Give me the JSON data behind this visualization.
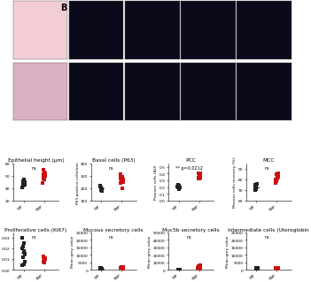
{
  "title_label": "B",
  "background_color": "#ffffff",
  "image_panel": {
    "he_color_top": "#f0c8d0",
    "he_color_bot": "#d8a8c0",
    "fluor_bg": "#080818"
  },
  "scatter_plots_row1": [
    {
      "title": "Epithelial height (μm)",
      "ylabel": "",
      "sig_text": "ns",
      "black_points": [
        42,
        45,
        47,
        43,
        44,
        46,
        41,
        43,
        45,
        44
      ],
      "red_points": [
        44,
        50,
        52,
        48,
        55,
        49,
        51,
        47,
        53,
        50
      ],
      "ylim": [
        30,
        60
      ],
      "yticks": [
        30,
        40,
        50,
        60
      ]
    },
    {
      "title": "Basal cells (P63)",
      "ylabel": "P63 positive cells/mm",
      "sig_text": "ns",
      "black_points": [
        180,
        220,
        200,
        190,
        205,
        195,
        215,
        185
      ],
      "red_points": [
        200,
        280,
        260,
        310,
        240,
        270,
        250,
        290,
        265,
        285
      ],
      "ylim": [
        100,
        400
      ],
      "yticks": [
        100,
        200,
        300,
        400
      ]
    },
    {
      "title": "PCC",
      "ylabel": "Pearson cells (AU)",
      "sig_text": "** p=0.0212",
      "black_points": [
        0.18,
        0.22,
        0.2,
        0.17,
        0.21,
        0.19,
        0.23,
        0.18
      ],
      "red_points": [
        0.32,
        0.38,
        0.35,
        0.4,
        0.34,
        0.37,
        0.36,
        0.39,
        0.33,
        0.41
      ],
      "ylim": [
        0.0,
        0.55
      ],
      "yticks": [
        0.0,
        0.1,
        0.2,
        0.3,
        0.4,
        0.5
      ]
    },
    {
      "title": "MCC",
      "ylabel": "Mucous cells recovery (%)",
      "sig_text": "ns",
      "black_points": [
        72,
        75,
        70,
        74,
        73,
        71,
        76,
        72
      ],
      "red_points": [
        78,
        82,
        80,
        84,
        79,
        83,
        81,
        85,
        77,
        86
      ],
      "ylim": [
        60,
        95
      ],
      "yticks": [
        60,
        70,
        80,
        90
      ]
    }
  ],
  "scatter_plots_row2": [
    {
      "title": "Proliferative cells (Ki67)",
      "ylabel": "",
      "sig_text": "ns",
      "black_points": [
        0.005,
        0.025,
        0.008,
        0.03,
        0.012,
        0.02,
        0.015,
        0.018,
        0.022,
        0.004
      ],
      "red_points": [
        0.008,
        0.012,
        0.01,
        0.009,
        0.011,
        0.007,
        0.013,
        0.009,
        0.01,
        0.008
      ],
      "ylim": [
        0,
        0.035
      ],
      "yticks": [
        0,
        0.01,
        0.02,
        0.03
      ]
    },
    {
      "title": "Mucous secretory cells",
      "ylabel": "Mean grey value",
      "sig_text": "ns",
      "black_points": [
        700,
        1200,
        900,
        800,
        1100,
        950,
        1050,
        850,
        750,
        1000
      ],
      "red_points": [
        1000,
        1800,
        1200,
        2000,
        1300,
        1600,
        1100,
        1400,
        1700,
        1250
      ],
      "ylim": [
        0,
        25000
      ],
      "yticks": [
        0,
        5000,
        10000,
        15000,
        20000,
        25000
      ]
    },
    {
      "title": "Muc5b secretory cells",
      "ylabel": "Mean grey value",
      "sig_text": "ns",
      "black_points": [
        200,
        500,
        350,
        280,
        420,
        310,
        380,
        250,
        450,
        300
      ],
      "red_points": [
        1500,
        5000,
        2000,
        6000,
        2500,
        4000,
        1800,
        3500,
        4500,
        2200
      ],
      "ylim": [
        0,
        50000
      ],
      "yticks": [
        0,
        10000,
        20000,
        30000,
        40000,
        50000
      ]
    },
    {
      "title": "Intermediate cells (Uteroglobin",
      "ylabel": "Mean grey value",
      "sig_text": "ns",
      "black_points": [
        800,
        1500,
        1000,
        1200,
        900,
        1100,
        1300,
        950,
        1050,
        1400
      ],
      "red_points": [
        1000,
        1200,
        1100,
        900,
        1300,
        1050,
        1150,
        950,
        1250,
        1080
      ],
      "ylim": [
        0,
        25000
      ],
      "yticks": [
        0,
        5000,
        10000,
        15000,
        20000,
        25000
      ]
    }
  ],
  "xtick_labels": [
    "WT",
    "SNP"
  ],
  "black_color": "#222222",
  "red_color": "#cc1111",
  "scatter_size": 5,
  "font_size_title": 4.2,
  "font_size_tick": 3.2,
  "font_size_label": 3.2,
  "font_size_sig": 3.5,
  "font_size_B": 7
}
